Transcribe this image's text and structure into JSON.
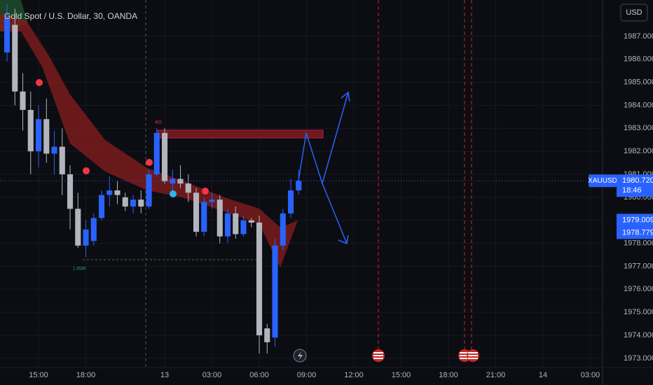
{
  "chart_data": {
    "type": "candlestick",
    "title": "Gold Spot / U.S. Dollar, 30, OANDA",
    "currency": "USD",
    "symbol": "XAUUSD",
    "countdown": "18:46",
    "last_price": {
      "value": 1980.72,
      "label": "1980.720"
    },
    "levels": [
      {
        "value": 1979.009,
        "label": "1979.009"
      },
      {
        "value": 1978.779,
        "label": "1978.779"
      }
    ],
    "annotations": [
      "1.353K",
      "402"
    ],
    "up_color": "#2962ff",
    "down_color": "#b2b5be",
    "grid": true,
    "categories": [
      null,
      null,
      null,
      null,
      "15:00",
      null,
      null,
      null,
      null,
      null,
      "18:00",
      null,
      null,
      null,
      null,
      null,
      null,
      null,
      null,
      null,
      "13",
      null,
      null,
      null,
      null,
      null,
      "03:00",
      null,
      null,
      null,
      null,
      null,
      "06:00",
      null,
      null,
      null,
      null,
      null,
      "09:00",
      null,
      null,
      null,
      null,
      null,
      "12:00",
      null,
      null,
      null,
      null,
      null,
      "15:00",
      null,
      null,
      null,
      null,
      null,
      "18:00",
      null,
      null,
      null,
      null,
      null,
      "21:00",
      null,
      null,
      null,
      null,
      null,
      "14",
      null,
      null,
      null,
      null,
      null,
      "03:00",
      null
    ],
    "open": [
      1986.3,
      1987.5,
      1984.6,
      1983.8,
      1982.0,
      1983.4,
      1981.9,
      1982.2,
      1981.0,
      1979.5,
      1977.9,
      1978.1,
      1979.1,
      1980.1,
      1980.3,
      1980.0,
      1979.6,
      1979.9,
      1979.6,
      1981.0,
      1982.8,
      1980.6,
      1980.8,
      1980.6,
      1980.2,
      1978.5,
      1979.8,
      1979.9,
      1978.3,
      1979.3,
      1978.4,
      1979.0,
      1978.9,
      1974.3,
      1973.9,
      1977.9,
      1979.3,
      1980.3,
      null,
      null,
      null,
      null,
      null,
      null,
      null,
      null,
      null,
      null,
      null,
      null,
      null,
      null,
      null,
      null,
      null,
      null,
      null,
      null,
      null,
      null,
      null,
      null,
      null,
      null,
      null,
      null,
      null,
      null,
      null,
      null,
      null,
      null,
      null,
      null,
      null,
      null
    ],
    "high": [
      1988.4,
      1988.2,
      1985.4,
      1984.6,
      1984.0,
      1984.3,
      1982.9,
      1983.0,
      1981.4,
      1980.2,
      1979.0,
      1979.3,
      1980.3,
      1980.9,
      1980.7,
      1980.2,
      1980.1,
      1980.3,
      1981.2,
      1983.0,
      1983.0,
      1981.2,
      1981.4,
      1981.0,
      1980.4,
      1980.0,
      1980.2,
      1980.1,
      1979.5,
      1979.6,
      1979.2,
      1979.1,
      1979.2,
      1974.5,
      1978.2,
      1979.5,
      1980.8,
      1981.2,
      null,
      null,
      null,
      null,
      null,
      null,
      null,
      null,
      null,
      null,
      null,
      null,
      null,
      null,
      null,
      null,
      null,
      null,
      null,
      null,
      null,
      null,
      null,
      null,
      null,
      null,
      null,
      null,
      null,
      null,
      null,
      null,
      null,
      null,
      null,
      null,
      null,
      null
    ],
    "low": [
      1985.9,
      1984.0,
      1982.9,
      1981.0,
      1981.3,
      1981.5,
      1981.0,
      1980.1,
      1978.6,
      1977.8,
      1977.4,
      1977.9,
      1979.0,
      1979.6,
      1979.7,
      1979.4,
      1979.3,
      1979.3,
      1979.5,
      1980.9,
      1980.6,
      1980.3,
      1980.4,
      1979.8,
      1978.3,
      1978.3,
      1979.5,
      1978.0,
      1978.0,
      1978.2,
      1978.3,
      1978.7,
      1973.2,
      1973.2,
      1973.5,
      1977.7,
      1979.1,
      1980.1,
      null,
      null,
      null,
      null,
      null,
      null,
      null,
      null,
      null,
      null,
      null,
      null,
      null,
      null,
      null,
      null,
      null,
      null,
      null,
      null,
      null,
      null,
      null,
      null,
      null,
      null,
      null,
      null,
      null,
      null,
      null,
      null,
      null,
      null,
      null,
      null,
      null,
      null
    ],
    "close": [
      1987.8,
      1984.6,
      1983.8,
      1982.0,
      1983.4,
      1981.9,
      1982.2,
      1981.0,
      1979.5,
      1977.9,
      1978.6,
      1979.1,
      1980.1,
      1980.3,
      1980.1,
      1979.6,
      1979.9,
      1979.6,
      1981.0,
      1982.8,
      1980.7,
      1980.8,
      1980.6,
      1980.2,
      1978.5,
      1979.8,
      1979.9,
      1978.3,
      1979.3,
      1978.4,
      1979.0,
      1978.9,
      1974.0,
      1973.7,
      1977.9,
      1979.3,
      1980.3,
      1980.72,
      null,
      null,
      null,
      null,
      null,
      null,
      null,
      null,
      null,
      null,
      null,
      null,
      null,
      null,
      null,
      null,
      null,
      null,
      null,
      null,
      null,
      null,
      null,
      null,
      null,
      null,
      null,
      null,
      null,
      null,
      null,
      null,
      null,
      null,
      null,
      null,
      null,
      null
    ],
    "ylim": [
      1972.6,
      1988.58
    ],
    "yticks": [
      {
        "value": 1973,
        "label": "1973.000"
      },
      {
        "value": 1974,
        "label": "1974.000"
      },
      {
        "value": 1975,
        "label": "1975.000"
      },
      {
        "value": 1976,
        "label": "1976.000"
      },
      {
        "value": 1977,
        "label": "1977.000"
      },
      {
        "value": 1978,
        "label": "1978.000"
      },
      {
        "value": 1979,
        "label": "1979.000"
      },
      {
        "value": 1980,
        "label": "1980.000"
      },
      {
        "value": 1981,
        "label": "1981.000"
      },
      {
        "value": 1982,
        "label": "1982.000"
      },
      {
        "value": 1983,
        "label": "1983.000"
      },
      {
        "value": 1984,
        "label": "1984.000"
      },
      {
        "value": 1985,
        "label": "1985.000"
      },
      {
        "value": 1986,
        "label": "1986.000"
      },
      {
        "value": 1987,
        "label": "1987.000"
      }
    ]
  }
}
